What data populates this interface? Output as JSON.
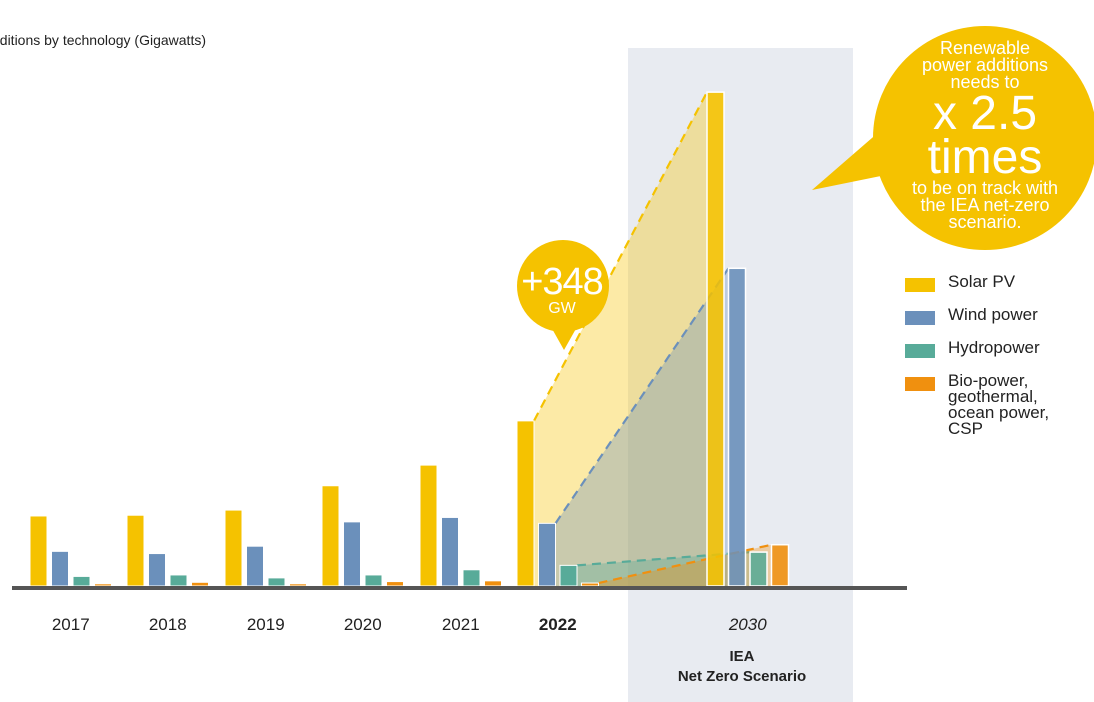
{
  "chart_data": {
    "type": "bar",
    "title": "",
    "subtitle": "dditions by technology (Gigawatts)",
    "categories": [
      "2017",
      "2018",
      "2019",
      "2020",
      "2021",
      "2022",
      "2030"
    ],
    "category_notes": {
      "2030": [
        "IEA",
        "Net Zero Scenario"
      ]
    },
    "series": [
      {
        "name": "Solar PV",
        "color": "#f5c200",
        "values": [
          95,
          96,
          103,
          136,
          164,
          224,
          670
        ]
      },
      {
        "name": "Wind power",
        "color": "#6b90bb",
        "values": [
          47,
          44,
          54,
          87,
          93,
          85,
          431
        ]
      },
      {
        "name": "Hydropower",
        "color": "#58ab99",
        "values": [
          13,
          15,
          11,
          15,
          22,
          28,
          46
        ]
      },
      {
        "name": "Bio-power, geothermal, ocean power, CSP",
        "color": "#f0900f",
        "values": [
          3,
          5,
          3,
          6,
          7,
          4,
          56
        ]
      }
    ],
    "ylim": [
      0,
      700
    ],
    "grid": false,
    "legend_position": "right",
    "highlight_category": "2030",
    "annotations": {
      "increase": {
        "value": "+348",
        "unit": "GW"
      },
      "message": {
        "before": [
          "Renewable",
          "power additions",
          "needs to"
        ],
        "multiplier": "x 2.5 times",
        "after": [
          "to be on track with",
          "the IEA net-zero",
          "scenario."
        ]
      }
    }
  },
  "colors": {
    "solar": "#f5c200",
    "wind": "#6b90bb",
    "hydro": "#58ab99",
    "bio": "#f0900f",
    "axis": "#555555",
    "scenario_bg": "#e8ebf1"
  }
}
